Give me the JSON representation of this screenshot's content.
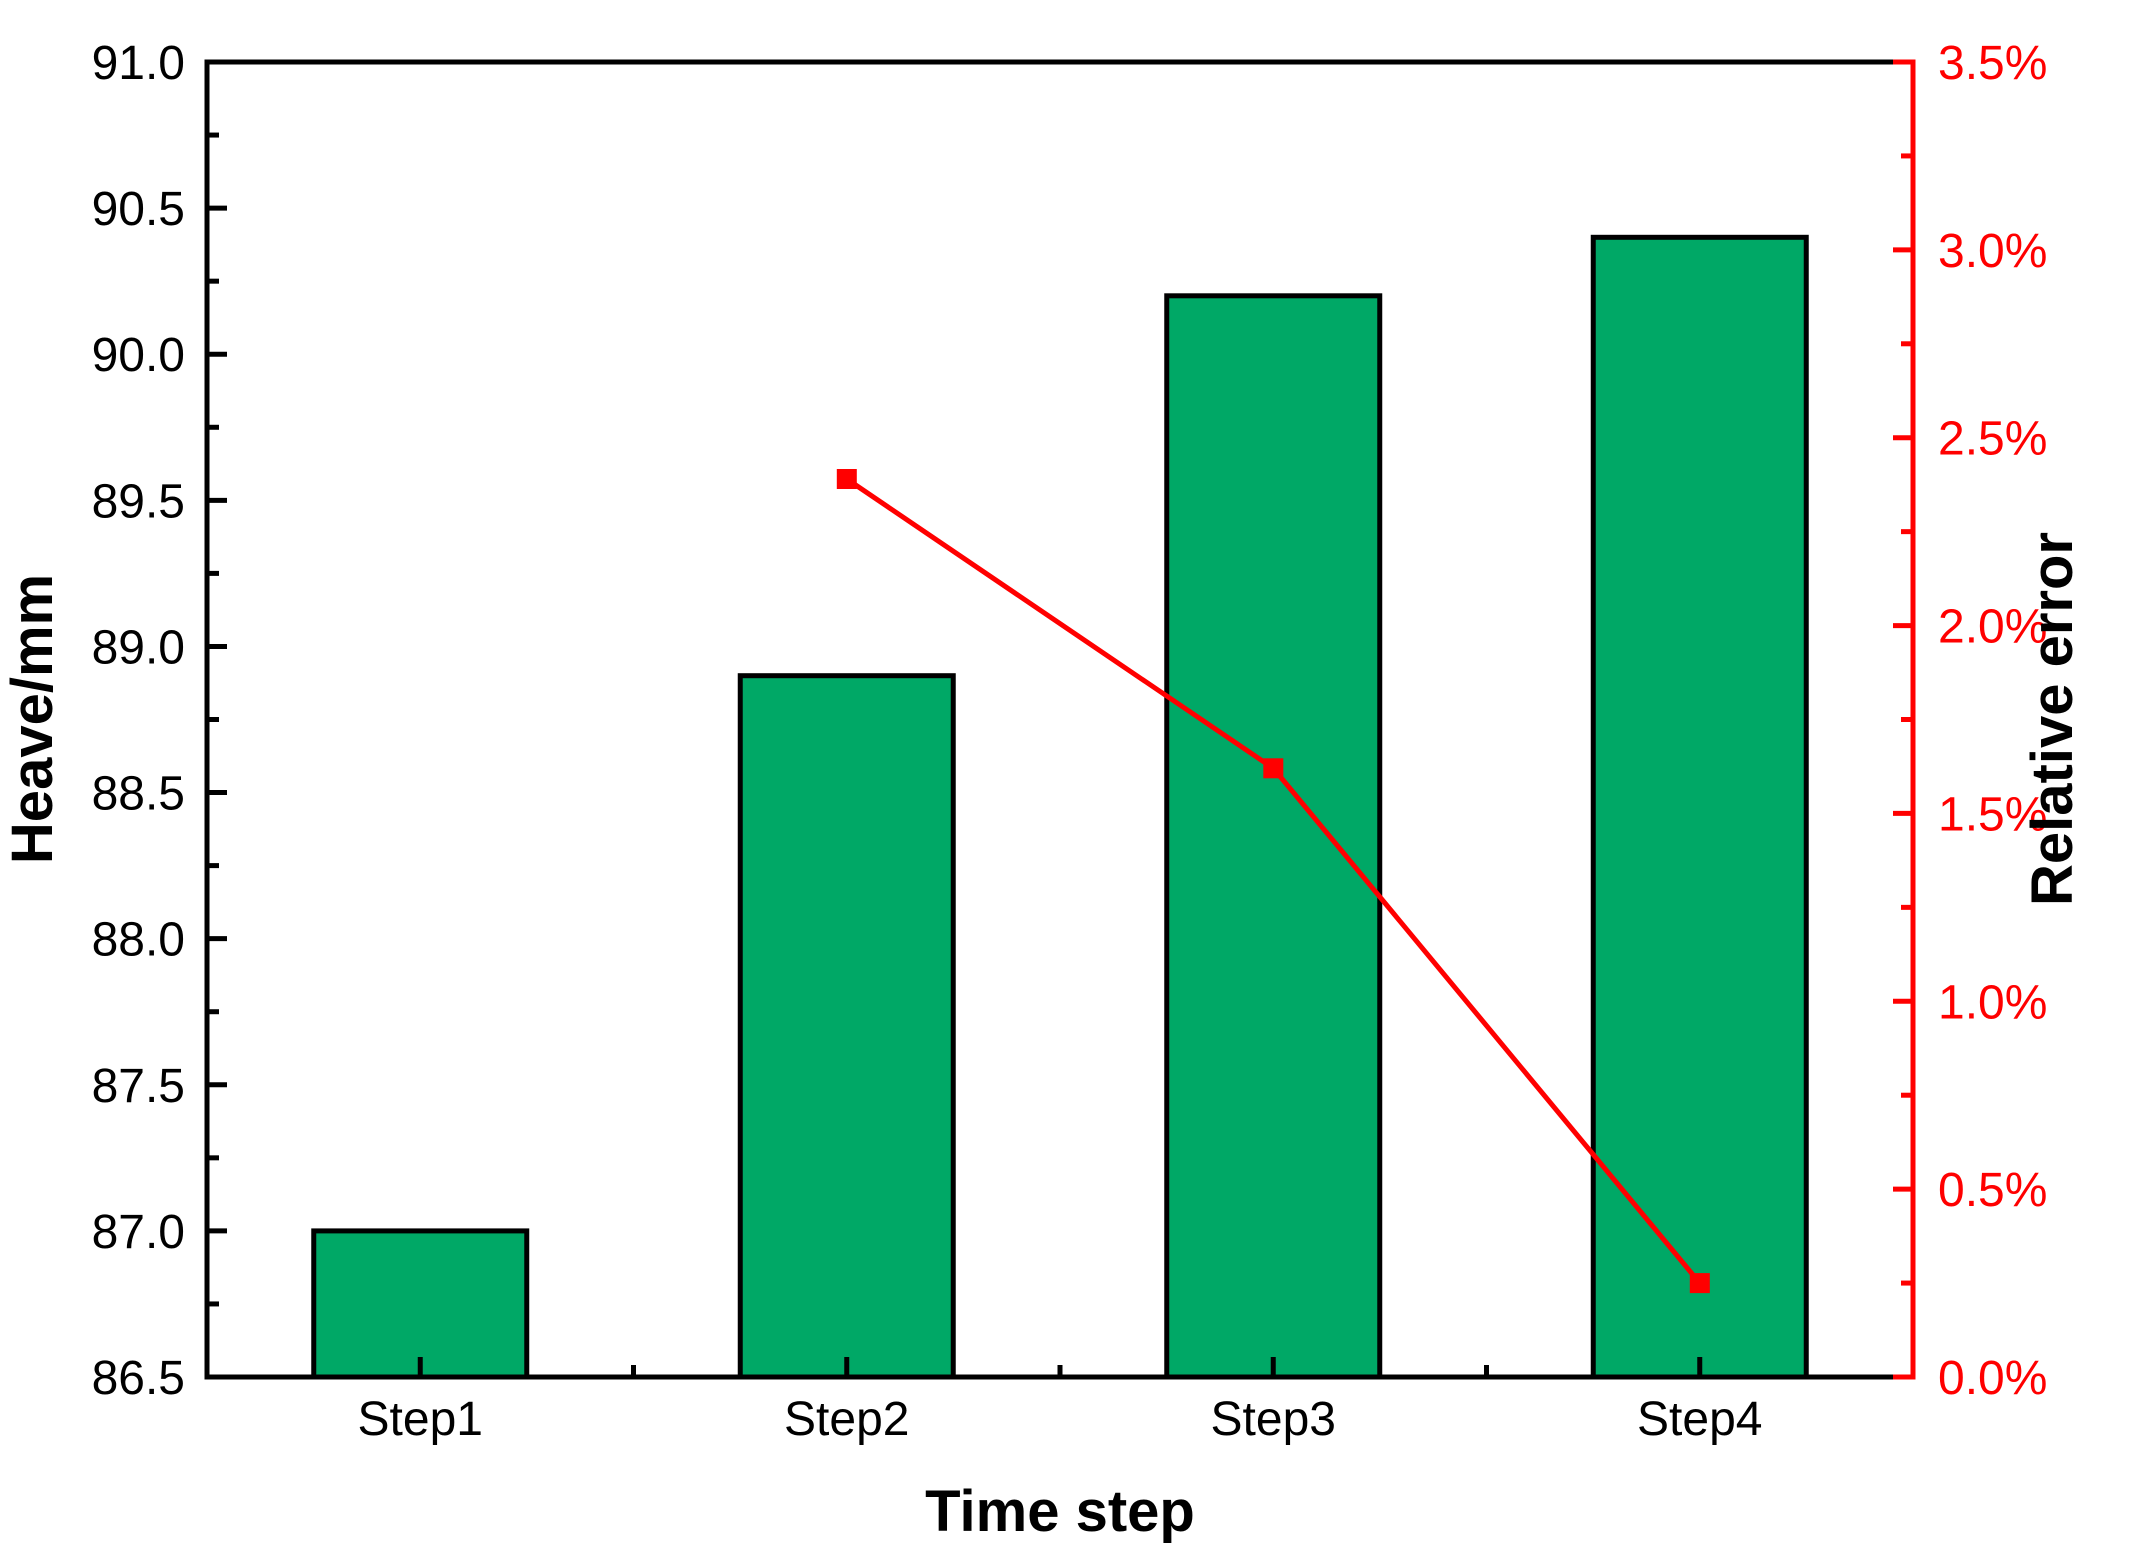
{
  "chart_data": {
    "type": "bar",
    "subtype": "bar-line-combo-dual-axis",
    "title": "",
    "categories": [
      "Step1",
      "Step2",
      "Step3",
      "Step4"
    ],
    "series": [
      {
        "name": "Heave",
        "type": "bar",
        "axis": "left",
        "values": [
          87.0,
          88.9,
          90.2,
          90.4
        ]
      },
      {
        "name": "Relative error",
        "type": "line",
        "axis": "right",
        "marker": "square",
        "points": [
          {
            "category": "Step2",
            "value_pct": 2.39
          },
          {
            "category": "Step3",
            "value_pct": 1.62
          },
          {
            "category": "Step4",
            "value_pct": 0.25
          }
        ]
      }
    ],
    "xlabel": "Time step",
    "ylabel_left": "Heave/mm",
    "ylabel_right": "Relative error",
    "axis_left": {
      "min": 86.5,
      "max": 91.0,
      "major_step": 0.5,
      "minor_step": 0.25,
      "tick_labels": [
        "91.0",
        "90.5",
        "90.0",
        "89.5",
        "89.0",
        "88.5",
        "88.0",
        "87.5",
        "87.0",
        "86.5"
      ]
    },
    "axis_right": {
      "min": 0.0,
      "max": 3.5,
      "major_step": 0.5,
      "minor_step": 0.25,
      "tick_labels": [
        "3.5%",
        "3.0%",
        "2.5%",
        "2.0%",
        "1.5%",
        "1.0%",
        "0.5%",
        "0.0%"
      ]
    },
    "grid": false,
    "legend_position": "none",
    "colors": {
      "bar_fill": "#00A866",
      "bar_border": "#000000",
      "line": "#FF0000",
      "marker": "#FF0000",
      "axis_left": "#000000",
      "axis_right": "#FF0000",
      "tick_label_left": "#000000",
      "tick_label_right": "#FF0000",
      "background": "#FFFFFF"
    }
  }
}
